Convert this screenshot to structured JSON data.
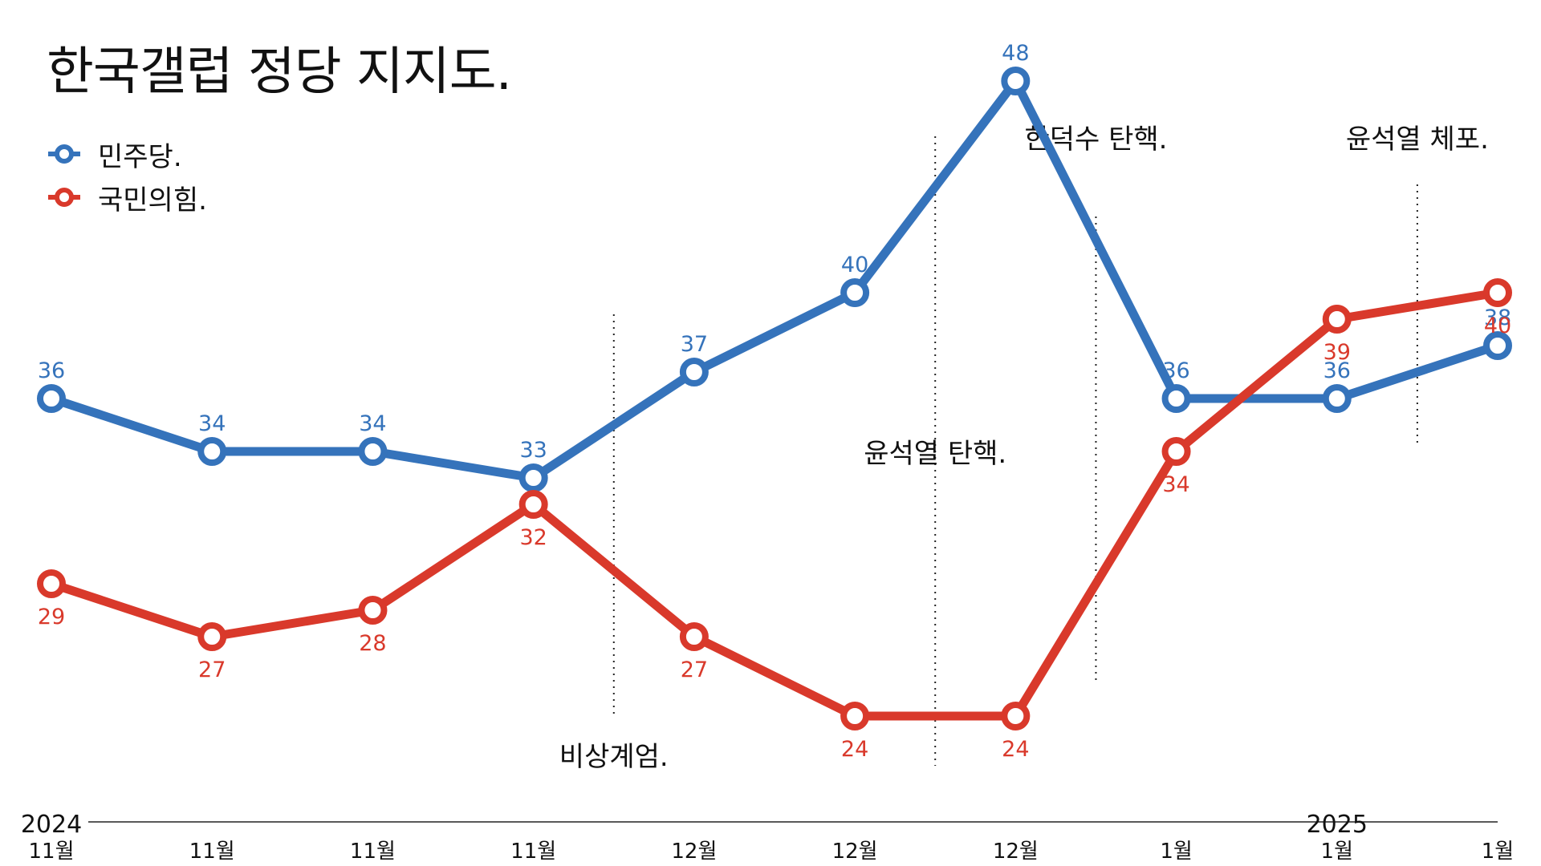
{
  "title": "한국갤럽 정당 지지도.",
  "colors": {
    "blue": "#3573bb",
    "red": "#d9392b",
    "axis": "#222222"
  },
  "chart_data": {
    "type": "line",
    "title": "한국갤럽 정당 지지도.",
    "x": [
      "11월",
      "11월",
      "11월",
      "11월",
      "12월",
      "12월",
      "12월",
      "1월",
      "1월",
      "1월"
    ],
    "year_labels": [
      {
        "label": "2024",
        "index": 0
      },
      {
        "label": "2025",
        "index": 8
      }
    ],
    "ylim": [
      20,
      50
    ],
    "grid": false,
    "legend_position": "top-left",
    "series": [
      {
        "name": "민주당.",
        "color": "#3573bb",
        "values": [
          36,
          34,
          34,
          33,
          37,
          40,
          48,
          36,
          36,
          38
        ]
      },
      {
        "name": "국민의힘.",
        "color": "#d9392b",
        "values": [
          29,
          27,
          28,
          32,
          27,
          24,
          24,
          34,
          39,
          40
        ]
      }
    ],
    "annotations": [
      {
        "text": "비상계엄.",
        "between": [
          3,
          4
        ]
      },
      {
        "text": "윤석열 탄핵.",
        "between": [
          5,
          6
        ]
      },
      {
        "text": "한덕수 탄핵.",
        "between": [
          6,
          7
        ]
      },
      {
        "text": "윤석열 체포.",
        "between": [
          8,
          9
        ]
      }
    ]
  }
}
